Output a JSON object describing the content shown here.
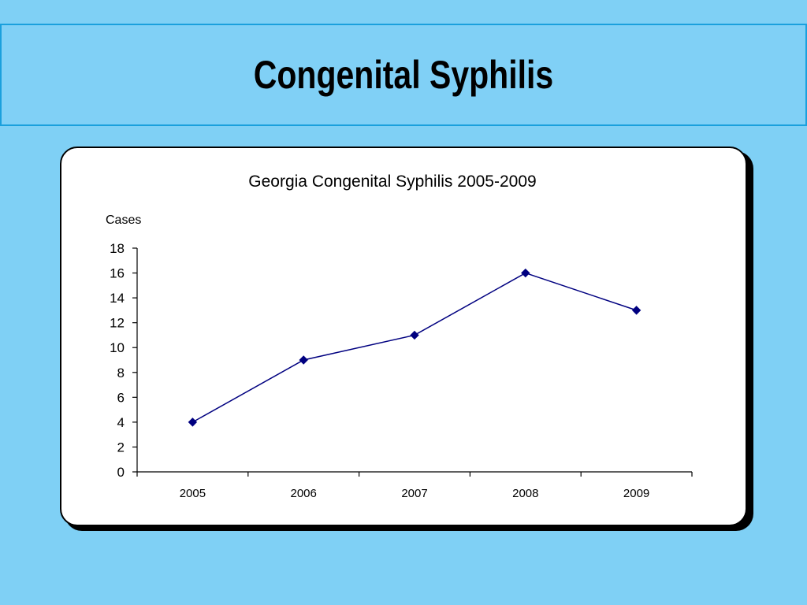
{
  "slide": {
    "title": "Congenital Syphilis"
  },
  "colors": {
    "background": "#7fd0f5",
    "title_band_border": "#1aa0dd",
    "series_line": "#000080"
  },
  "chart_data": {
    "type": "line",
    "title": "Georgia Congenital Syphilis 2005-2009",
    "ylabel": "Cases",
    "xlabel": "",
    "categories": [
      "2005",
      "2006",
      "2007",
      "2008",
      "2009"
    ],
    "series": [
      {
        "values": [
          4,
          9,
          11,
          16,
          13
        ]
      }
    ],
    "ylim": [
      0,
      18
    ],
    "yticks": [
      0,
      2,
      4,
      6,
      8,
      10,
      12,
      14,
      16,
      18
    ],
    "marker": "diamond",
    "grid": false,
    "legend": "none"
  }
}
